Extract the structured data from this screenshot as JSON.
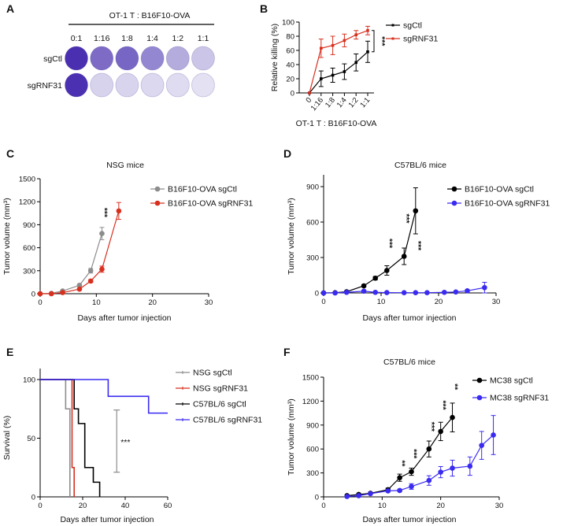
{
  "chart_data": [
    {
      "label": "A",
      "type": "image",
      "title": "OT-1 T : B16F10-OVA",
      "columns": [
        "0:1",
        "1:16",
        "1:8",
        "1:4",
        "1:2",
        "1:1"
      ],
      "rows": [
        "sgCtl",
        "sgRNF31"
      ],
      "stain_color": "#4a2fb0"
    },
    {
      "label": "B",
      "type": "line",
      "categories": [
        "0",
        "1:16",
        "1:8",
        "1:4",
        "1:2",
        "1:1"
      ],
      "xlabel": "OT-1 T : B16F10-OVA",
      "ylabel": "Relative killing (%)",
      "ylim": [
        0,
        100
      ],
      "yticks": [
        0,
        20,
        40,
        60,
        80,
        100
      ],
      "legend": "right",
      "series": [
        {
          "name": "sgCtl",
          "color": "#000000",
          "values": [
            0,
            20,
            25,
            30,
            43,
            58
          ],
          "errors": [
            0,
            11,
            10,
            11,
            12,
            15
          ]
        },
        {
          "name": "sgRNF31",
          "color": "#d7301f",
          "values": [
            0,
            63,
            67,
            74,
            82,
            88
          ],
          "errors": [
            0,
            13,
            13,
            9,
            6,
            6
          ]
        }
      ],
      "annotations": [
        {
          "text": "***",
          "type": "bracket",
          "x": "1:1",
          "y_low": 58,
          "y_high": 88
        }
      ]
    },
    {
      "label": "C",
      "type": "line",
      "title": "NSG mice",
      "xlabel": "Days after tumor injection",
      "ylabel": "Tumor volume (mm³)",
      "xlim": [
        0,
        30
      ],
      "xticks": [
        0,
        10,
        20,
        30
      ],
      "ylim": [
        0,
        1500
      ],
      "yticks": [
        0,
        300,
        600,
        900,
        1200,
        1500
      ],
      "legend": "top-right",
      "series": [
        {
          "name": "B16F10-OVA sgCtl",
          "color": "#8c8c8c",
          "x": [
            0,
            2,
            4,
            7,
            9,
            11
          ],
          "values": [
            0,
            5,
            35,
            110,
            300,
            785
          ],
          "errors": [
            0,
            3,
            8,
            15,
            30,
            80
          ]
        },
        {
          "name": "B16F10-OVA sgRNF31",
          "color": "#d7301f",
          "x": [
            0,
            2,
            4,
            7,
            9,
            11,
            14
          ],
          "values": [
            0,
            0,
            15,
            60,
            165,
            320,
            1080
          ],
          "errors": [
            0,
            0,
            5,
            12,
            20,
            40,
            110
          ]
        }
      ],
      "annotations": [
        {
          "text": "***",
          "x": 11,
          "y": 1060
        }
      ]
    },
    {
      "label": "D",
      "type": "line",
      "title": "C57BL/6 mice",
      "xlabel": "Days after tumor injection",
      "ylabel": "Tumor volume (mm³)",
      "xlim": [
        0,
        30
      ],
      "xticks": [
        0,
        10,
        20,
        30
      ],
      "ylim": [
        0,
        1000
      ],
      "yticks": [
        0,
        300,
        600,
        900
      ],
      "legend": "top-right",
      "series": [
        {
          "name": "B16F10-OVA sgCtl",
          "color": "#000000",
          "x": [
            0,
            2,
            4,
            7,
            9,
            11,
            14,
            16
          ],
          "values": [
            0,
            2,
            10,
            60,
            125,
            190,
            310,
            695
          ],
          "errors": [
            0,
            2,
            5,
            10,
            15,
            40,
            70,
            195
          ]
        },
        {
          "name": "B16F10-OVA sgRNF31",
          "color": "#3a2bf0",
          "x": [
            0,
            2,
            4,
            7,
            9,
            11,
            14,
            16,
            18,
            21,
            23,
            25,
            28
          ],
          "values": [
            0,
            0,
            5,
            15,
            5,
            3,
            2,
            2,
            2,
            5,
            8,
            18,
            45
          ],
          "errors": [
            0,
            0,
            3,
            8,
            4,
            3,
            2,
            2,
            2,
            4,
            6,
            10,
            45
          ]
        }
      ],
      "annotations": [
        {
          "text": "***",
          "x": 11,
          "y": 420
        },
        {
          "text": "***",
          "x": 14,
          "y": 630
        },
        {
          "text": "***",
          "x": 16,
          "y": 400
        }
      ]
    },
    {
      "label": "E",
      "type": "line",
      "xlabel": "Days after tumor injection",
      "ylabel": "Survival (%)",
      "xlim": [
        0,
        60
      ],
      "xticks": [
        0,
        20,
        40,
        60
      ],
      "ylim": [
        0,
        100
      ],
      "yticks": [
        0,
        50,
        100
      ],
      "legend": "right",
      "series": [
        {
          "name": "NSG sgCtl",
          "color": "#8c8c8c",
          "x": [
            0,
            12,
            14
          ],
          "values": [
            100,
            75,
            0
          ]
        },
        {
          "name": "NSG sgRNF31",
          "color": "#d7301f",
          "x": [
            0,
            15,
            16
          ],
          "values": [
            100,
            25,
            0
          ]
        },
        {
          "name": "C57BL/6 sgCtl",
          "color": "#000000",
          "x": [
            0,
            16,
            18,
            21,
            25,
            28
          ],
          "values": [
            100,
            75,
            62.5,
            25,
            12.5,
            0
          ]
        },
        {
          "name": "C57BL/6 sgRNF31",
          "color": "#3a2bf0",
          "x": [
            0,
            32,
            51,
            60
          ],
          "values": [
            100,
            85.7,
            71.4,
            71.4
          ]
        }
      ],
      "annotations": [
        {
          "text": "***",
          "type": "bracket",
          "x": 36,
          "y_low": 21,
          "y_high": 74
        }
      ]
    },
    {
      "label": "F",
      "type": "line",
      "title": "C57BL/6 mice",
      "xlabel": "Days after tumor injection",
      "ylabel": "Tumor volume (mm³)",
      "xlim": [
        0,
        30
      ],
      "xticks": [
        0,
        10,
        20,
        30
      ],
      "ylim": [
        0,
        1500
      ],
      "yticks": [
        0,
        300,
        600,
        900,
        1200,
        1500
      ],
      "legend": "top-right",
      "series": [
        {
          "name": "MC38 sgCtl",
          "color": "#000000",
          "x": [
            4,
            6,
            8,
            11,
            13,
            15,
            18,
            20,
            22
          ],
          "values": [
            15,
            30,
            45,
            90,
            240,
            315,
            600,
            820,
            995
          ],
          "errors": [
            10,
            12,
            12,
            20,
            45,
            45,
            100,
            115,
            180
          ]
        },
        {
          "name": "MC38 sgRNF31",
          "color": "#3a2bf0",
          "x": [
            4,
            6,
            8,
            11,
            13,
            15,
            18,
            20,
            22,
            25,
            27,
            29
          ],
          "values": [
            5,
            15,
            40,
            75,
            80,
            130,
            205,
            310,
            360,
            385,
            645,
            775
          ],
          "errors": [
            5,
            8,
            10,
            15,
            15,
            35,
            60,
            70,
            100,
            115,
            175,
            245
          ]
        }
      ],
      "annotations": [
        {
          "text": "**",
          "x": 13,
          "y": 420
        },
        {
          "text": "***",
          "x": 15,
          "y": 540
        },
        {
          "text": "***",
          "x": 18,
          "y": 880
        },
        {
          "text": "***",
          "x": 20,
          "y": 1150
        },
        {
          "text": "**",
          "x": 22,
          "y": 1380
        }
      ]
    }
  ]
}
